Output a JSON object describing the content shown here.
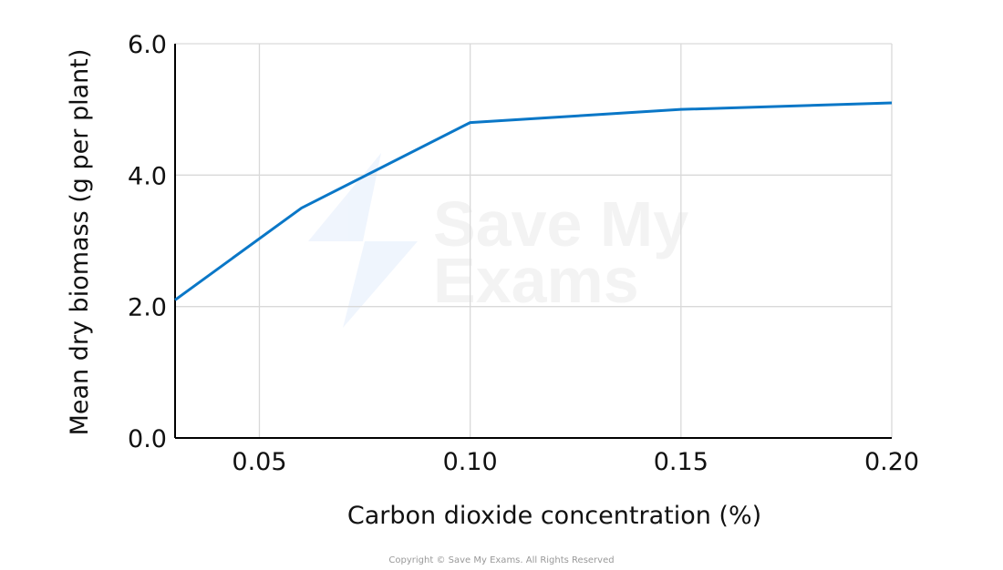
{
  "chart_data": {
    "type": "line",
    "xlabel": "Carbon dioxide concentration (%)",
    "ylabel": "Mean dry biomass (g per plant)",
    "xlim": [
      0.03,
      0.2
    ],
    "ylim": [
      0,
      6.0
    ],
    "x_ticks": [
      "0.05",
      "0.10",
      "0.15",
      "0.20"
    ],
    "x_tick_values": [
      0.05,
      0.1,
      0.15,
      0.2
    ],
    "y_ticks": [
      "0.0",
      "2.0",
      "4.0",
      "6.0"
    ],
    "y_tick_values": [
      0,
      2,
      4,
      6
    ],
    "grid": true,
    "series": [
      {
        "x": [
          0.03,
          0.06,
          0.1,
          0.15,
          0.2
        ],
        "y": [
          2.1,
          3.5,
          4.8,
          5.0,
          5.1
        ],
        "color": "#0a77c7"
      }
    ]
  },
  "watermark": "Save My Exams",
  "copyright": "Copyright © Save My Exams. All Rights Reserved"
}
